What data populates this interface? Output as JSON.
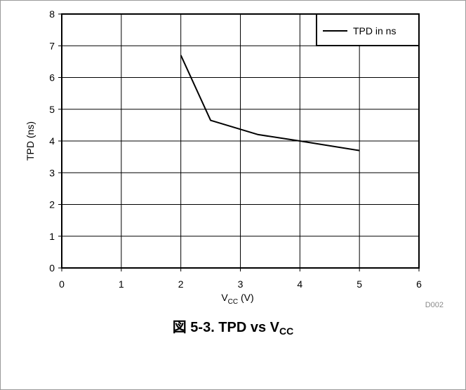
{
  "chart_data": {
    "type": "line",
    "x": [
      2,
      2.5,
      3.3,
      4,
      5
    ],
    "series": [
      {
        "name": "TPD in ns",
        "color": "#000000",
        "values": [
          6.7,
          4.65,
          4.2,
          4.0,
          3.7
        ]
      }
    ],
    "xlim": [
      0,
      6
    ],
    "ylim": [
      0,
      8
    ],
    "xticks": [
      "0",
      "1",
      "2",
      "3",
      "4",
      "5",
      "6"
    ],
    "yticks": [
      "0",
      "1",
      "2",
      "3",
      "4",
      "5",
      "6",
      "7",
      "8"
    ],
    "grid": true,
    "legend_position": "top-right",
    "xlabel": {
      "main": "V",
      "sub": "CC",
      "suffix": " (V)"
    },
    "ylabel": "TPD (ns)",
    "figure_code": "D002",
    "caption": {
      "prefix": "図 5-3. TPD vs V",
      "sub": "CC"
    }
  }
}
